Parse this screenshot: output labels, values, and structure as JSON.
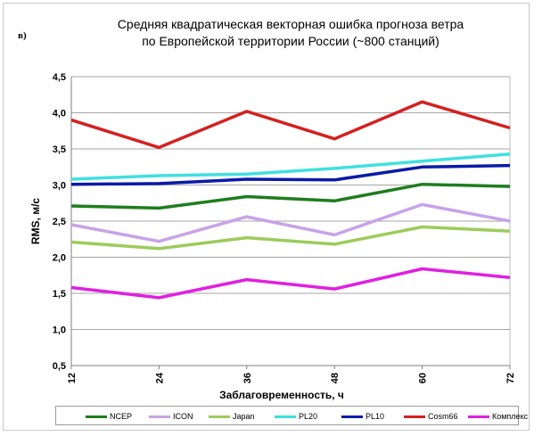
{
  "panel_letter": "в)",
  "title_lines": [
    "Средняя квадратическая векторная ошибка прогноза  ветра",
    "по Европейской территории России (~800 станций)"
  ],
  "chart_data": {
    "type": "line",
    "title": "Средняя квадратическая векторная ошибка прогноза  ветра по Европейской территории России (~800 станций)",
    "xlabel": "Заблаговременность, ч",
    "ylabel": "RMS, м/с",
    "x": [
      "12",
      "24",
      "36",
      "48",
      "60",
      "72"
    ],
    "ylim": [
      0.5,
      4.5
    ],
    "yticks": [
      "0,5",
      "1,0",
      "1,5",
      "2,0",
      "2,5",
      "3,0",
      "3,5",
      "4,0",
      "4,5"
    ],
    "grid": true,
    "legend_position": "bottom",
    "series": [
      {
        "name": "NCEP",
        "color": "#1e7d1e",
        "values": [
          2.71,
          2.68,
          2.84,
          2.78,
          3.01,
          2.98
        ]
      },
      {
        "name": "ICON",
        "color": "#c8a2e8",
        "values": [
          2.45,
          2.22,
          2.56,
          2.31,
          2.73,
          2.5
        ]
      },
      {
        "name": "Japan",
        "color": "#9ccc5a",
        "values": [
          2.21,
          2.12,
          2.27,
          2.18,
          2.42,
          2.36
        ]
      },
      {
        "name": "PL20",
        "color": "#3fe0e0",
        "values": [
          3.08,
          3.13,
          3.15,
          3.23,
          3.33,
          3.43
        ]
      },
      {
        "name": "PL10",
        "color": "#0a1aa8",
        "values": [
          3.01,
          3.02,
          3.08,
          3.07,
          3.25,
          3.27
        ]
      },
      {
        "name": "Cosm66",
        "color": "#d42020",
        "values": [
          3.9,
          3.52,
          4.02,
          3.64,
          4.15,
          3.79
        ]
      },
      {
        "name": "Комплекс",
        "color": "#e020e0",
        "values": [
          1.58,
          1.44,
          1.69,
          1.56,
          1.84,
          1.72
        ]
      }
    ]
  }
}
